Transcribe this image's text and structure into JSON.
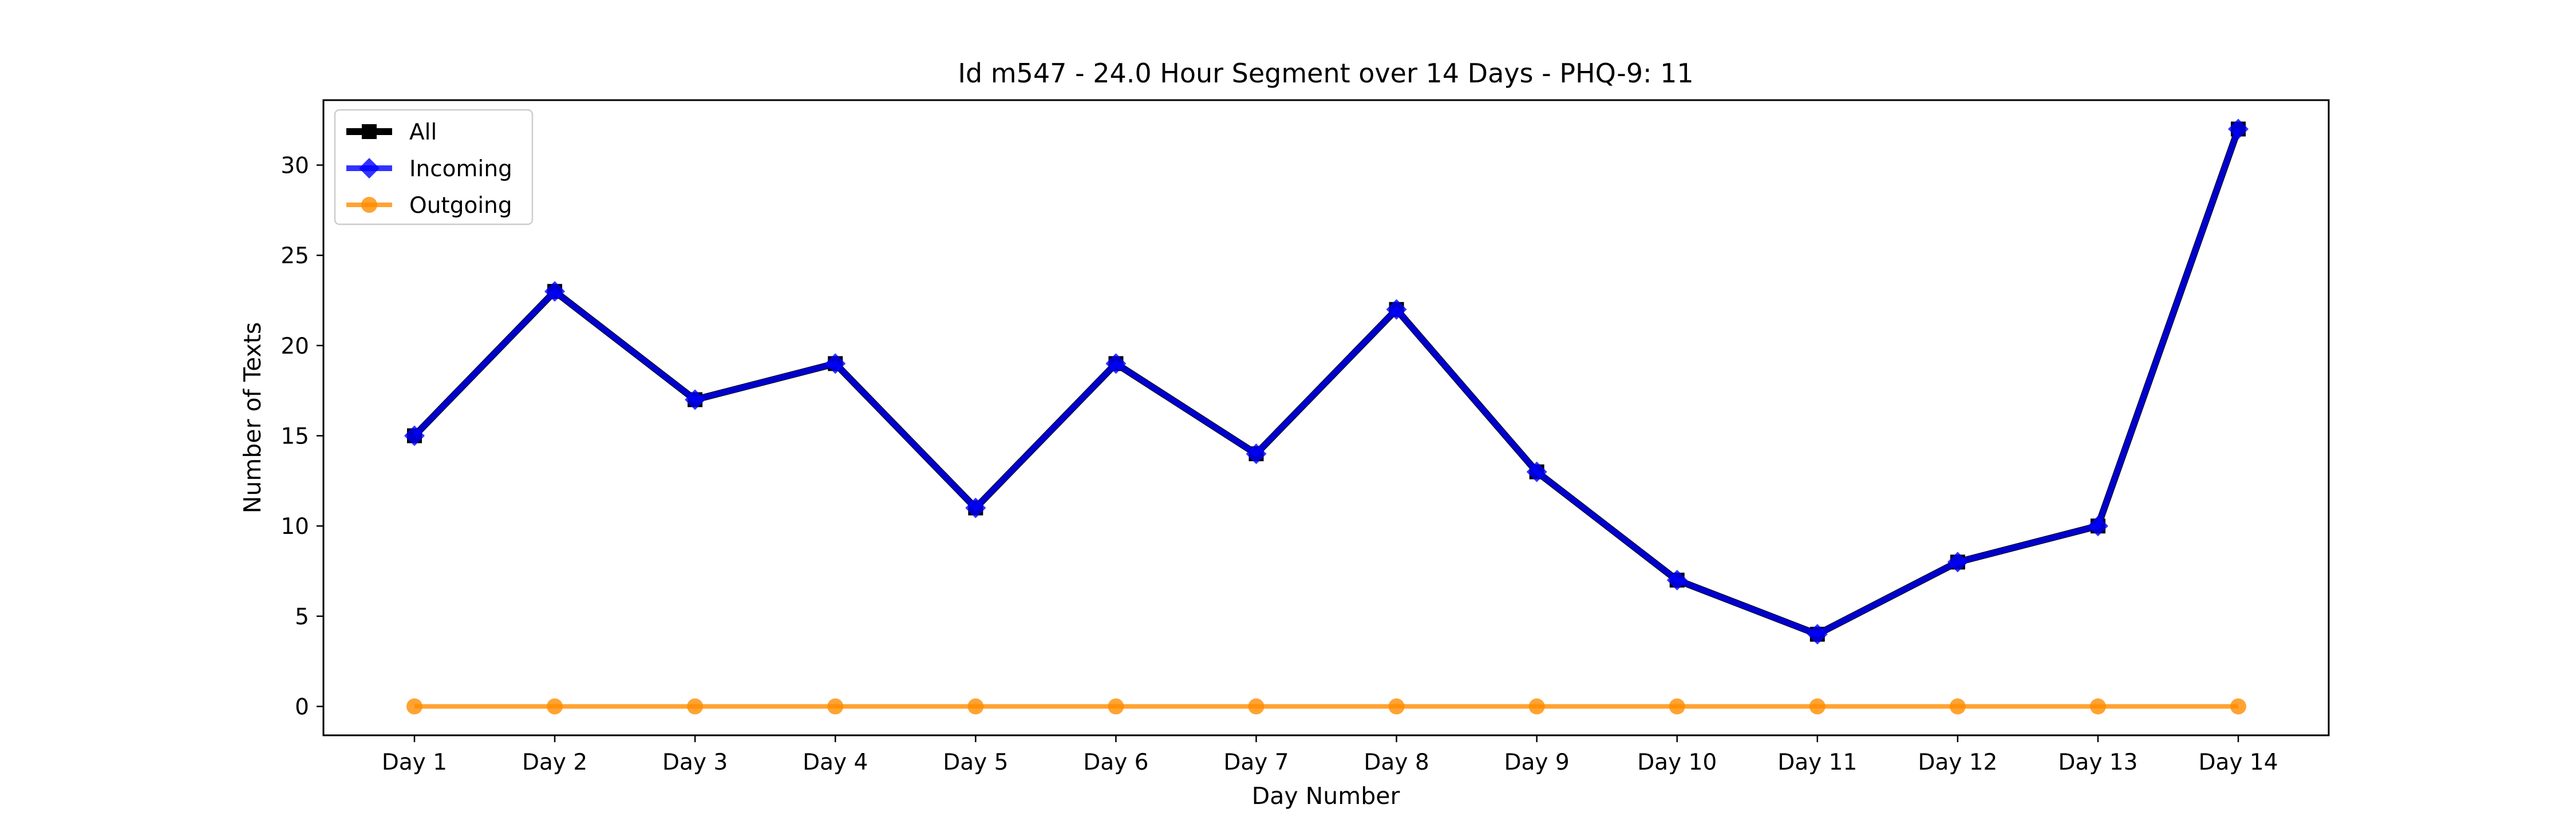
{
  "chart_data": {
    "type": "line",
    "title": "Id m547 - 24.0 Hour Segment over 14 Days - PHQ-9: 11",
    "xlabel": "Day Number",
    "ylabel": "Number of Texts",
    "categories": [
      "Day 1",
      "Day 2",
      "Day 3",
      "Day 4",
      "Day 5",
      "Day 6",
      "Day 7",
      "Day 8",
      "Day 9",
      "Day 10",
      "Day 11",
      "Day 12",
      "Day 13",
      "Day 14"
    ],
    "ylim": [
      -1.6,
      33.6
    ],
    "yticks": [
      0,
      5,
      10,
      15,
      20,
      25,
      30
    ],
    "grid": false,
    "legend_position": "top-left",
    "series": [
      {
        "name": "All",
        "color": "#000000",
        "marker": "square",
        "values": [
          15,
          23,
          17,
          19,
          11,
          19,
          14,
          22,
          13,
          7,
          4,
          8,
          10,
          32
        ]
      },
      {
        "name": "Incoming",
        "color": "#0000ff",
        "marker": "diamond",
        "values": [
          15,
          23,
          17,
          19,
          11,
          19,
          14,
          22,
          13,
          7,
          4,
          8,
          10,
          32
        ]
      },
      {
        "name": "Outgoing",
        "color": "#ff8c00",
        "marker": "circle",
        "values": [
          0,
          0,
          0,
          0,
          0,
          0,
          0,
          0,
          0,
          0,
          0,
          0,
          0,
          0
        ]
      }
    ]
  }
}
